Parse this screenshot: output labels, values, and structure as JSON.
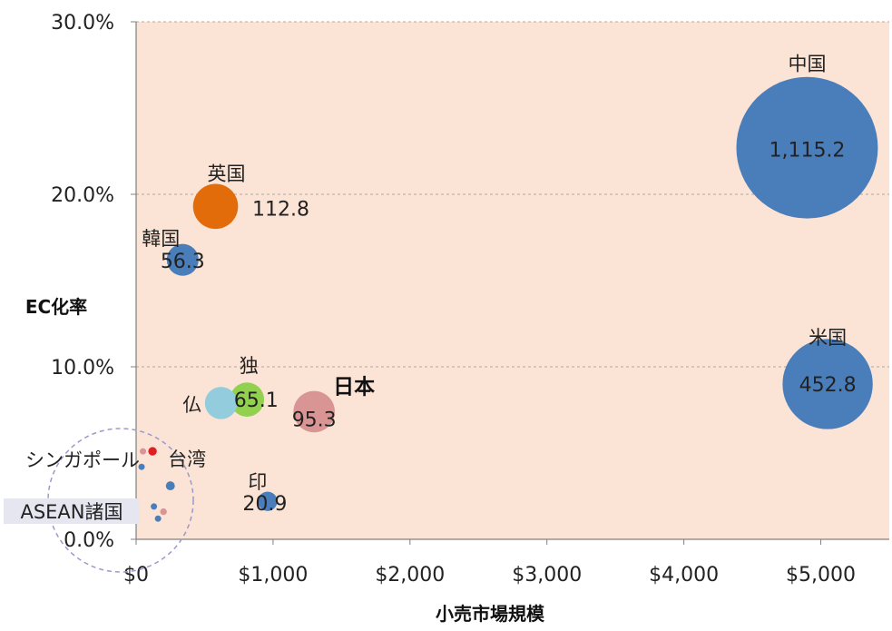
{
  "chart_data": {
    "type": "bubble",
    "xlabel": "小売市場規模",
    "ylabel": "EC化率",
    "xlim": [
      0,
      5500
    ],
    "ylim": [
      0,
      30
    ],
    "x_ticks": [
      "$0",
      "$1,000",
      "$2,000",
      "$3,000",
      "$4,000",
      "$5,000"
    ],
    "y_ticks": [
      "0.0%",
      "10.0%",
      "20.0%",
      "30.0%"
    ],
    "grid": "horizontal dashed",
    "background": "#FBE4D5",
    "points": [
      {
        "name": "中国",
        "x": 4900,
        "y": 22.7,
        "size": 1115.2,
        "label": "1,115.2",
        "color": "#4A7EBB"
      },
      {
        "name": "米国",
        "x": 5050,
        "y": 9.0,
        "size": 452.8,
        "label": "452.8",
        "color": "#4A7EBB"
      },
      {
        "name": "英国",
        "x": 580,
        "y": 19.3,
        "size": 112.8,
        "label": "112.8",
        "color": "#E36C0A"
      },
      {
        "name": "韓国",
        "x": 340,
        "y": 16.2,
        "size": 56.3,
        "label": "56.3",
        "color": "#4A7EBB"
      },
      {
        "name": "独",
        "x": 810,
        "y": 8.1,
        "size": 65.1,
        "label": "65.1",
        "color": "#92D050"
      },
      {
        "name": "仏",
        "x": 620,
        "y": 7.9,
        "size": 58.0,
        "label": "",
        "color": "#93CDDD"
      },
      {
        "name": "日本",
        "x": 1300,
        "y": 7.4,
        "size": 95.3,
        "label": "95.3",
        "color": "#D99594"
      },
      {
        "name": "印",
        "x": 960,
        "y": 2.2,
        "size": 20.9,
        "label": "20.9",
        "color": "#4A7EBB"
      },
      {
        "name": "台湾",
        "x": 120,
        "y": 5.1,
        "size": 4,
        "label": "",
        "color": "#E02020"
      },
      {
        "name": "シンガポール",
        "x": 40,
        "y": 4.2,
        "size": 1.2,
        "label": "",
        "color": "#4A7EBB"
      },
      {
        "name": "",
        "x": 50,
        "y": 5.1,
        "size": 1.5,
        "label": "",
        "color": "#D99594"
      },
      {
        "name": "",
        "x": 250,
        "y": 3.1,
        "size": 4.5,
        "label": "",
        "color": "#4A7EBB"
      },
      {
        "name": "",
        "x": 130,
        "y": 1.9,
        "size": 2,
        "label": "",
        "color": "#4A7EBB"
      },
      {
        "name": "",
        "x": 200,
        "y": 1.6,
        "size": 2.5,
        "label": "",
        "color": "#D99594"
      },
      {
        "name": "",
        "x": 160,
        "y": 1.2,
        "size": 2,
        "label": "",
        "color": "#4A7EBB"
      }
    ],
    "group_label": "ASEAN諸国"
  },
  "colors": {
    "plot_bg": "#FBE4D5",
    "grid": "#B0A8A0",
    "axis": "#808080",
    "circle_outline": "#9B99CC",
    "group_label_bg": "#E6E6F0"
  }
}
